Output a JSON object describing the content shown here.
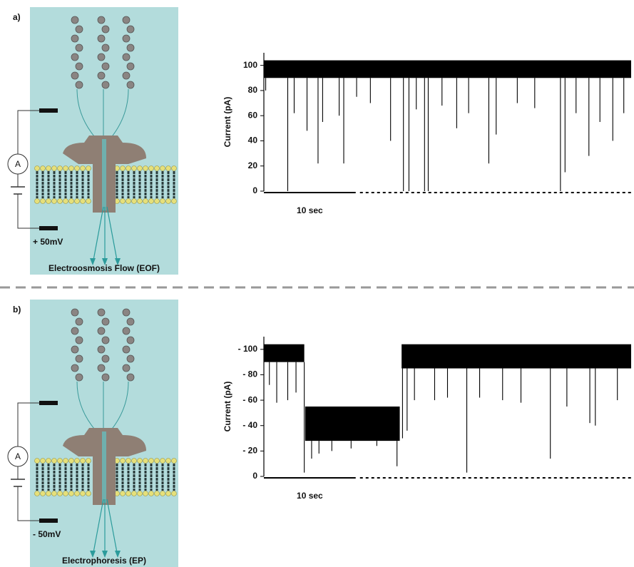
{
  "panels": [
    {
      "label": "a)",
      "diagram": {
        "meter": "A",
        "voltage": "+ 50mV",
        "caption": "Electroosmosis Flow (EOF)"
      }
    },
    {
      "label": "b)",
      "diagram": {
        "meter": "A",
        "voltage": "- 50mV",
        "caption": "Electrophoresis (EP)"
      }
    }
  ],
  "chart_data": [
    {
      "type": "trace",
      "ylabel": "Current (pA)",
      "color": "#000000",
      "xlim": [
        0,
        40
      ],
      "ylim": [
        0,
        110
      ],
      "yticks": [
        0,
        20,
        40,
        60,
        80,
        100
      ],
      "scale_bar": {
        "x": [
          0,
          10
        ],
        "label": "10 sec"
      },
      "bands": [
        {
          "x": [
            0,
            40
          ],
          "ylim": [
            90,
            104
          ]
        }
      ],
      "events": [
        {
          "x": 0.2,
          "value": 80
        },
        {
          "x": 2.6,
          "value": 0
        },
        {
          "x": 3.3,
          "value": 62
        },
        {
          "x": 4.7,
          "value": 48
        },
        {
          "x": 5.9,
          "value": 22
        },
        {
          "x": 6.4,
          "value": 55
        },
        {
          "x": 8.2,
          "value": 60
        },
        {
          "x": 8.7,
          "value": 22
        },
        {
          "x": 10.1,
          "value": 75
        },
        {
          "x": 11.6,
          "value": 70
        },
        {
          "x": 13.8,
          "value": 40
        },
        {
          "x": 15.2,
          "value": 0
        },
        {
          "x": 15.8,
          "value": 0
        },
        {
          "x": 16.6,
          "value": 65
        },
        {
          "x": 17.5,
          "value": 0
        },
        {
          "x": 17.9,
          "value": 0
        },
        {
          "x": 19.4,
          "value": 68
        },
        {
          "x": 21.0,
          "value": 50
        },
        {
          "x": 22.3,
          "value": 62
        },
        {
          "x": 24.5,
          "value": 22
        },
        {
          "x": 25.3,
          "value": 45
        },
        {
          "x": 27.6,
          "value": 70
        },
        {
          "x": 29.5,
          "value": 66
        },
        {
          "x": 32.3,
          "value": 0
        },
        {
          "x": 32.8,
          "value": 15
        },
        {
          "x": 34.0,
          "value": 62
        },
        {
          "x": 35.4,
          "value": 28
        },
        {
          "x": 36.6,
          "value": 55
        },
        {
          "x": 38.0,
          "value": 40
        },
        {
          "x": 39.2,
          "value": 62
        }
      ]
    },
    {
      "type": "trace",
      "ylabel": "Current (pA)",
      "color": "#000000",
      "xlim": [
        0,
        40
      ],
      "ylim": [
        0,
        110
      ],
      "yticks": [
        0,
        {
          "value": 20,
          "label": "- 20"
        },
        {
          "value": 40,
          "label": "- 40"
        },
        {
          "value": 60,
          "label": "- 60"
        },
        {
          "value": 80,
          "label": "- 80"
        },
        {
          "value": 100,
          "label": "- 100"
        }
      ],
      "scale_bar": {
        "x": [
          0,
          10
        ],
        "label": "10 sec"
      },
      "bands": [
        {
          "x": [
            0,
            4.4
          ],
          "ylim": [
            90,
            104
          ]
        },
        {
          "x": [
            4.5,
            14.8
          ],
          "ylim": [
            28,
            55
          ]
        },
        {
          "x": [
            15.0,
            40
          ],
          "ylim": [
            85,
            104
          ]
        }
      ],
      "events": [
        {
          "x": 0.6,
          "value": 72
        },
        {
          "x": 1.4,
          "value": 58
        },
        {
          "x": 2.6,
          "value": 60
        },
        {
          "x": 3.5,
          "value": 66
        },
        {
          "x": 4.4,
          "value": 3
        },
        {
          "x": 5.2,
          "value": 14
        },
        {
          "x": 6.0,
          "value": 18
        },
        {
          "x": 7.4,
          "value": 20
        },
        {
          "x": 9.5,
          "value": 22
        },
        {
          "x": 12.3,
          "value": 24
        },
        {
          "x": 14.5,
          "value": 8
        },
        {
          "x": 15.1,
          "value": 30
        },
        {
          "x": 15.6,
          "value": 36
        },
        {
          "x": 16.4,
          "value": 60
        },
        {
          "x": 18.6,
          "value": 60
        },
        {
          "x": 20.0,
          "value": 62
        },
        {
          "x": 22.1,
          "value": 3
        },
        {
          "x": 23.5,
          "value": 62
        },
        {
          "x": 26.0,
          "value": 60
        },
        {
          "x": 28.0,
          "value": 58
        },
        {
          "x": 31.2,
          "value": 14
        },
        {
          "x": 33.0,
          "value": 55
        },
        {
          "x": 35.5,
          "value": 42
        },
        {
          "x": 36.1,
          "value": 40
        },
        {
          "x": 38.5,
          "value": 60
        }
      ]
    }
  ]
}
